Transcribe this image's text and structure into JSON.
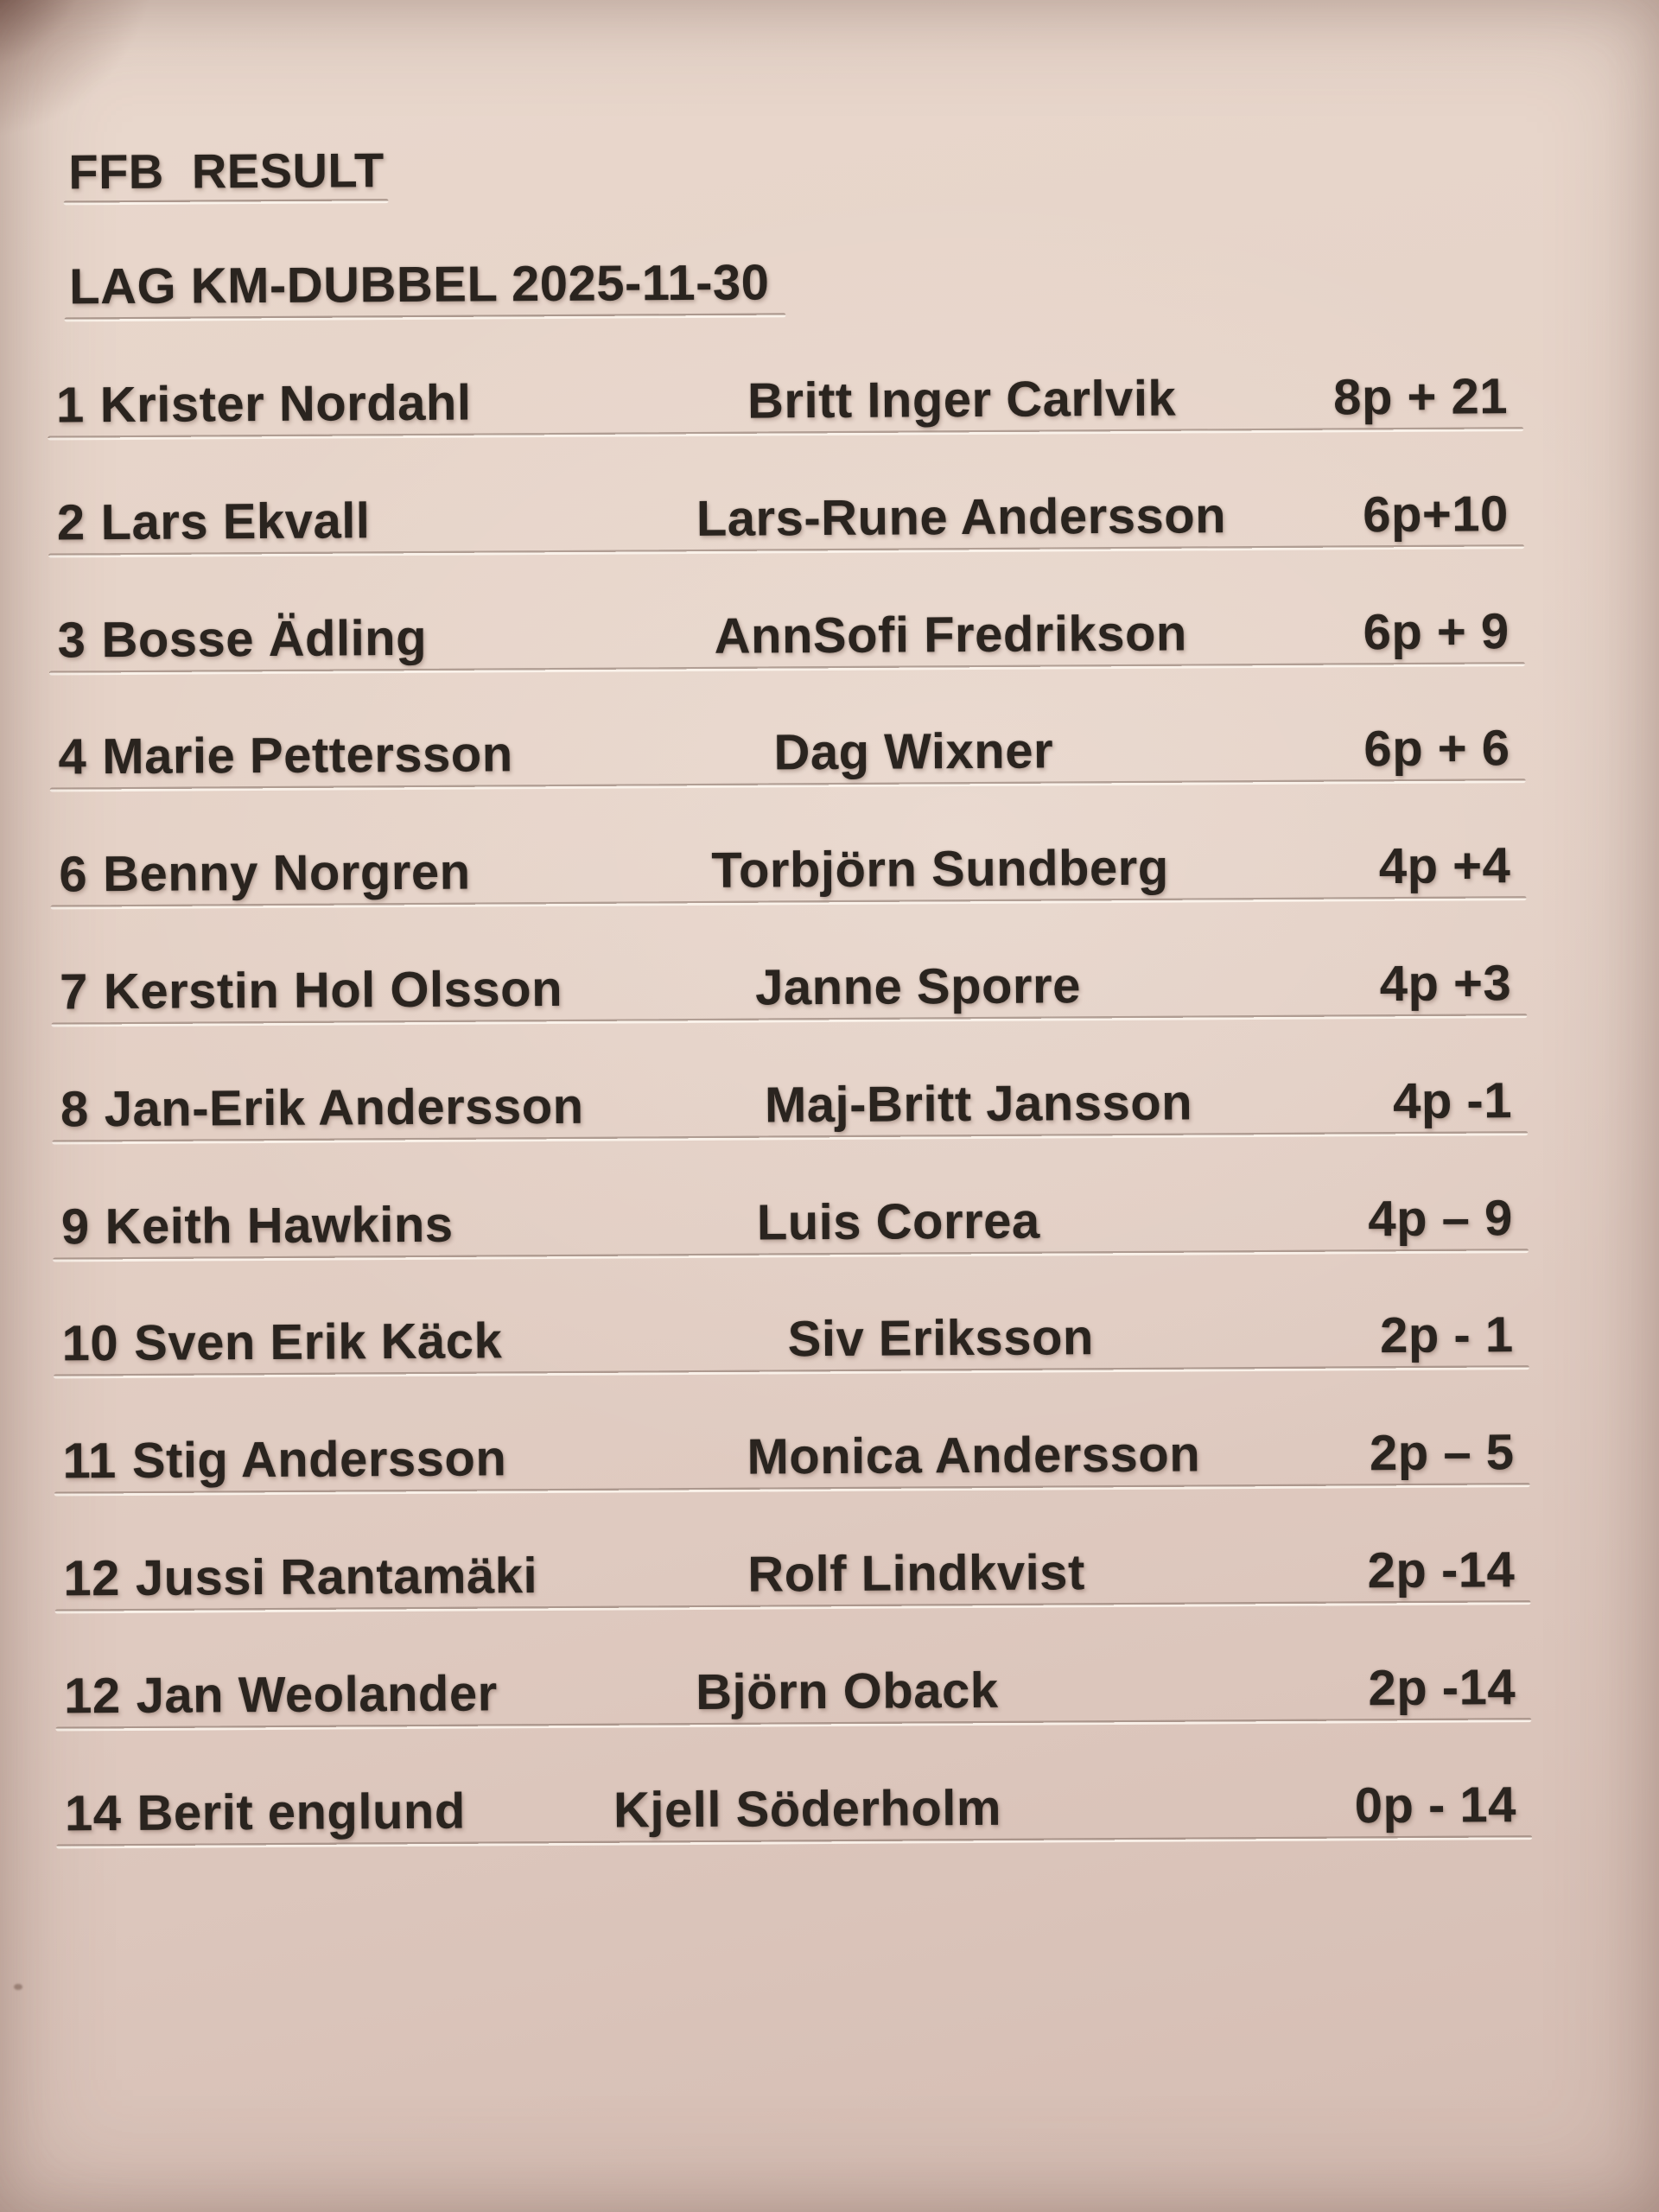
{
  "sheet": {
    "title": "FFB  RESULT",
    "subtitle": "LAG KM-DUBBEL 2025-11-30",
    "rows": [
      {
        "rank": "1",
        "player1": "Krister Nordahl",
        "player2": "Britt Inger Carlvik",
        "score": "8p + 21"
      },
      {
        "rank": "2",
        "player1": "Lars Ekvall",
        "player2": "Lars-Rune Andersson",
        "score": "6p+10"
      },
      {
        "rank": "3",
        "player1": "Bosse Ädling",
        "player2": "AnnSofi Fredrikson",
        "score": "6p + 9"
      },
      {
        "rank": "4",
        "player1": "Marie Pettersson",
        "player2": "Dag Wixner",
        "score": "6p + 6"
      },
      {
        "rank": "6",
        "player1": "Benny Norgren",
        "player2": "Torbjörn Sundberg",
        "score": "4p +4"
      },
      {
        "rank": "7",
        "player1": "Kerstin Hol Olsson",
        "player2": "Janne Sporre",
        "score": "4p +3"
      },
      {
        "rank": "8",
        "player1": "Jan-Erik Andersson",
        "player2": "Maj-Britt Jansson",
        "score": "4p -1"
      },
      {
        "rank": "9",
        "player1": "Keith Hawkins",
        "player2": "Luis Correa",
        "score": "4p – 9"
      },
      {
        "rank": "10",
        "player1": "Sven Erik Käck",
        "player2": "Siv Eriksson",
        "score": "2p - 1"
      },
      {
        "rank": "11",
        "player1": "Stig Andersson",
        "player2": "Monica Andersson",
        "score": "2p – 5"
      },
      {
        "rank": "12",
        "player1": "Jussi Rantamäki",
        "player2": "Rolf Lindkvist",
        "score": "2p -14"
      },
      {
        "rank": "12",
        "player1": "Jan Weolander",
        "player2": "Björn Oback",
        "score": "2p -14"
      },
      {
        "rank": "14",
        "player1": "Berit englund",
        "player2": "Kjell Söderholm",
        "score": "0p - 14"
      }
    ],
    "colors": {
      "paper": "#e3d0c5",
      "text": "#2a241f",
      "underline_dark": "#7a665c",
      "underline_light": "#fcf5ed",
      "corner_shadow": "#40201a"
    }
  }
}
